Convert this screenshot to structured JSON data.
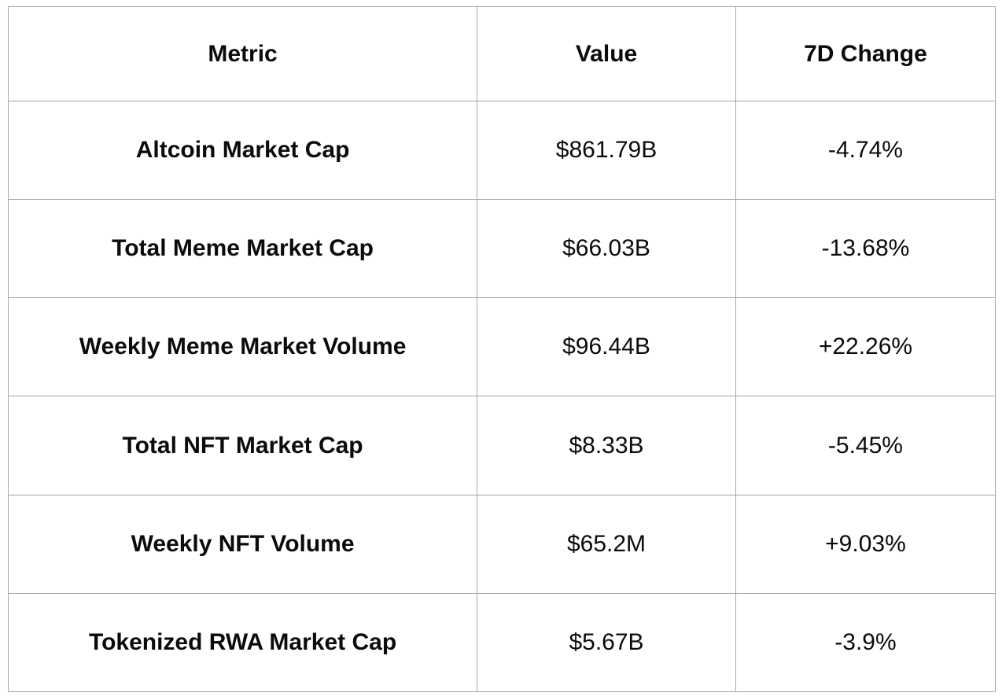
{
  "chart_data": {
    "type": "table",
    "columns": [
      "Metric",
      "Value",
      "7D Change"
    ],
    "rows": [
      [
        "Altcoin Market Cap",
        "$861.79B",
        "-4.74%"
      ],
      [
        "Total Meme Market Cap",
        "$66.03B",
        "-13.68%"
      ],
      [
        "Weekly Meme Market Volume",
        "$96.44B",
        "+22.26%"
      ],
      [
        "Total NFT Market Cap",
        "$8.33B",
        "-5.45%"
      ],
      [
        "Weekly NFT Volume",
        "$65.2M",
        "+9.03%"
      ],
      [
        "Tokenized RWA Market Cap",
        "$5.67B",
        "-3.9%"
      ]
    ],
    "layout": {
      "header_bold": true,
      "metric_column_bold": true,
      "text_align": "center",
      "grid": "all-borders"
    }
  },
  "colors": {
    "border": "#a6a6a6",
    "text": "#0b0b0b",
    "background": "#ffffff"
  }
}
